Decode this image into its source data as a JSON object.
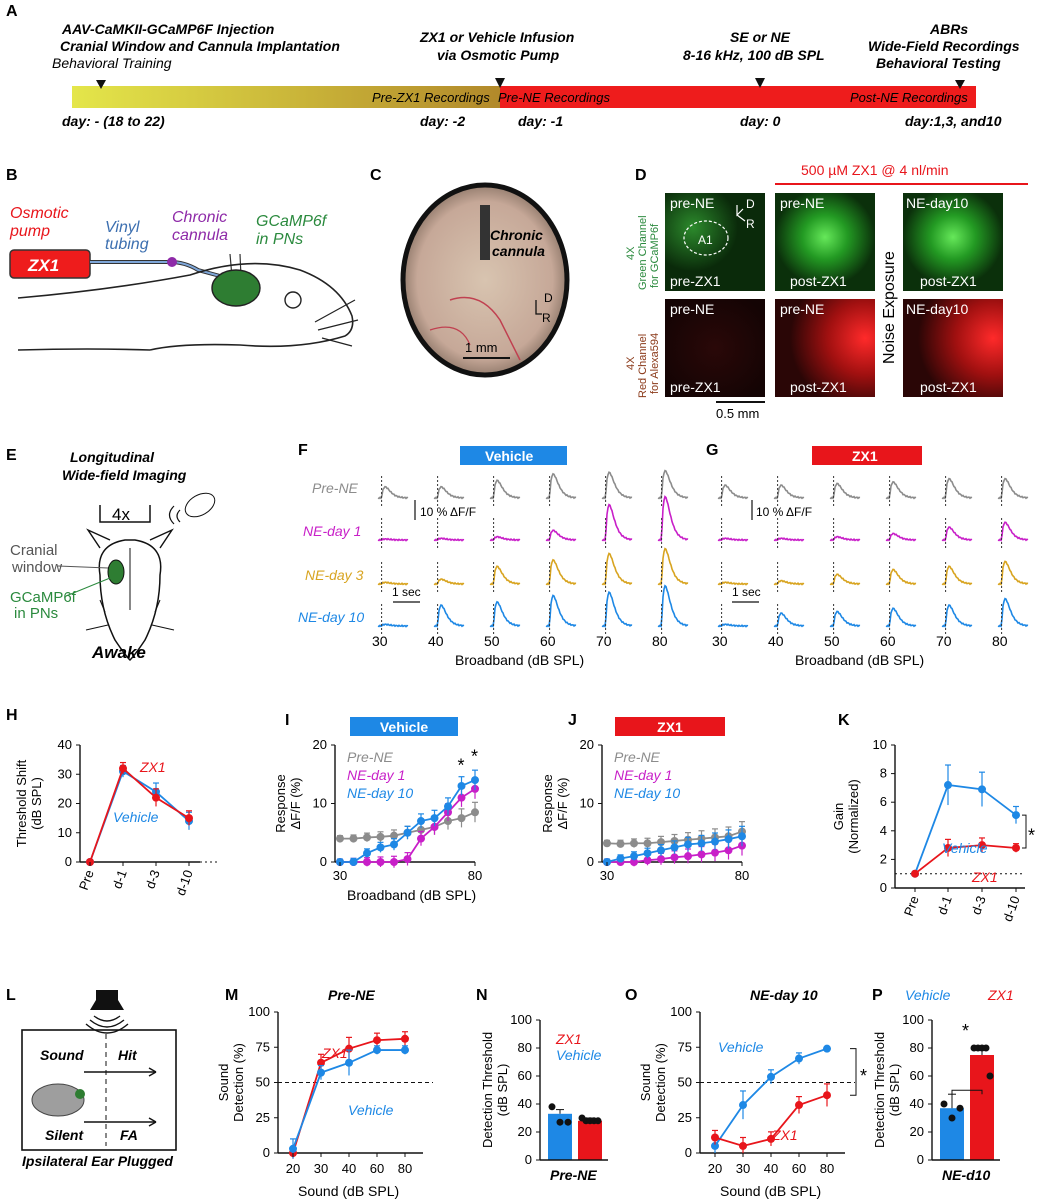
{
  "colors": {
    "vehicle": "#1e88e5",
    "zx1": "#e8151b",
    "pre": "#8c8c8c",
    "day1": "#c81fc8",
    "day3": "#d8a420",
    "day10": "#1e88e5",
    "green": "#2b8a3e",
    "red": "#e8151b",
    "purple": "#8e2aa8",
    "blue_text": "#3c6fb0"
  },
  "A": {
    "label": "A",
    "events": [
      {
        "lines": [
          "AAV-CaMKII-GCaMP6F Injection",
          "Cranial Window and Cannula Implantation"
        ],
        "sub": "Behavioral Training"
      },
      {
        "lines": [
          "ZX1 or Vehicle Infusion",
          "via Osmotic Pump"
        ]
      },
      {
        "lines": [
          "SE or NE",
          "8-16 kHz, 100 dB SPL"
        ]
      },
      {
        "lines": [
          "ABRs",
          "Wide-Field Recordings"
        ],
        "sub": "Behavioral Testing"
      }
    ],
    "bar_labels": [
      "Pre-ZX1 Recordings",
      "Pre-NE Recordings",
      "Post-NE Recordings"
    ],
    "days": [
      "day: - (18 to 22)",
      "day: -2",
      "day: -1",
      "day: 0",
      "day:1,3, and10"
    ]
  },
  "B": {
    "label": "B",
    "zx1": "ZX1",
    "osmotic": [
      "Osmotic",
      "pump"
    ],
    "vinyl": [
      "Vinyl",
      "tubing"
    ],
    "cannula": [
      "Chronic",
      "cannula"
    ],
    "gcamp": [
      "GCaMP6f",
      "in PNs"
    ]
  },
  "C": {
    "label": "C",
    "cannula": [
      "Chronic",
      "cannula"
    ],
    "scale": "1 mm",
    "dir_d": "D",
    "dir_r": "R"
  },
  "D": {
    "label": "D",
    "header": "500 µM ZX1 @ 4 nl/min",
    "green_label": [
      "4X",
      "Green Channel",
      "for GCaMP6f"
    ],
    "red_label": [
      "4X",
      "Red Channel",
      "for Alexa594"
    ],
    "noise": "Noise Exposure",
    "scale": "0.5 mm",
    "a1": "A1",
    "dir_d": "D",
    "dir_r": "R",
    "top": [
      "pre-NE",
      "pre-NE",
      "NE-day10"
    ],
    "bottom": [
      "pre-ZX1",
      "post-ZX1",
      "post-ZX1"
    ]
  },
  "E": {
    "label": "E",
    "title": [
      "Longitudinal",
      "Wide-field Imaging"
    ],
    "mag": "4x",
    "window": [
      "Cranial",
      "window"
    ],
    "gcamp": [
      "GCaMP6f",
      "in PNs"
    ],
    "awake": "Awake"
  },
  "FG": {
    "F_label": "F",
    "G_label": "G",
    "F_title": "Vehicle",
    "G_title": "ZX1",
    "rows": [
      "Pre-NE",
      "NE-day 1",
      "NE-day 3",
      "NE-day 10"
    ],
    "levels": [
      "30",
      "40",
      "50",
      "60",
      "70",
      "80"
    ],
    "xlabel": "Broadband (dB SPL)",
    "scale_y": "10 % ΔF/F",
    "scale_x": "1 sec",
    "F_amp": [
      [
        0.35,
        0.35,
        0.55,
        0.75,
        0.8,
        0.85
      ],
      [
        0.03,
        0.05,
        0.1,
        0.3,
        1.1,
        1.35
      ],
      [
        0.05,
        0.15,
        0.55,
        0.75,
        0.95,
        1.1
      ],
      [
        0.05,
        0.65,
        0.75,
        0.95,
        1.05,
        1.25
      ]
    ],
    "G_amp": [
      [
        0.4,
        0.4,
        0.45,
        0.5,
        0.6,
        0.6
      ],
      [
        0.05,
        0.05,
        0.1,
        0.2,
        0.4,
        0.55
      ],
      [
        0.05,
        0.1,
        0.3,
        0.45,
        0.55,
        0.7
      ],
      [
        0.05,
        0.4,
        0.45,
        0.55,
        0.65,
        0.85
      ]
    ]
  },
  "chart_data": [
    {
      "panel": "H",
      "type": "line",
      "categories": [
        "Pre",
        "d-1",
        "d-3",
        "d-10"
      ],
      "ylabel": [
        "Threshold Shift",
        "(dB SPL)"
      ],
      "yticks": [
        "0",
        "10",
        "20",
        "30",
        "40"
      ],
      "ylim": [
        0,
        40
      ],
      "series": [
        {
          "name": "ZX1",
          "values": [
            0,
            32,
            22,
            15
          ],
          "err": [
            0,
            2,
            3,
            2.5
          ]
        },
        {
          "name": "Vehicle",
          "values": [
            0,
            31,
            24,
            14
          ],
          "err": [
            0,
            2,
            3,
            3
          ]
        }
      ]
    },
    {
      "panel": "I",
      "type": "line",
      "title": "Vehicle",
      "xlabel": "Broadband (dB SPL)",
      "ylabel": [
        "Response",
        "ΔF/F (%)"
      ],
      "yticks": [
        "0",
        "10",
        "20"
      ],
      "xticks": [
        "30",
        "80"
      ],
      "ylim": [
        0,
        20
      ],
      "star": "*",
      "x": [
        30,
        35,
        40,
        45,
        50,
        55,
        60,
        65,
        70,
        75,
        80
      ],
      "series": [
        {
          "name": "Pre-NE",
          "values": [
            4,
            4,
            4.2,
            4.3,
            4.5,
            5,
            5.5,
            6,
            7,
            7.5,
            8.5
          ]
        },
        {
          "name": "NE-day 1",
          "values": [
            0,
            0,
            0,
            0,
            0,
            0.5,
            4,
            6,
            8.5,
            11,
            12.5
          ]
        },
        {
          "name": "NE-day 10",
          "values": [
            0,
            0,
            1.5,
            2.5,
            3,
            5,
            7,
            7.5,
            9.5,
            13,
            14
          ]
        }
      ]
    },
    {
      "panel": "J",
      "type": "line",
      "title": "ZX1",
      "yticks": [
        "0",
        "10",
        "20"
      ],
      "xticks": [
        "30",
        "80"
      ],
      "ylim": [
        0,
        20
      ],
      "ylabel": [
        "Response",
        "ΔF/F (%)"
      ],
      "x": [
        30,
        35,
        40,
        45,
        50,
        55,
        60,
        65,
        70,
        75,
        80
      ],
      "series": [
        {
          "name": "Pre-NE",
          "values": [
            3.2,
            3.1,
            3.2,
            3.2,
            3.4,
            3.6,
            3.8,
            4.0,
            4.2,
            4.4,
            5.2
          ]
        },
        {
          "name": "NE-day 1",
          "values": [
            0,
            0,
            0,
            0.3,
            0.5,
            0.8,
            1,
            1.3,
            1.6,
            2,
            2.8
          ]
        },
        {
          "name": "NE-day 10",
          "values": [
            0,
            0.6,
            1,
            1.5,
            2,
            2.5,
            3,
            3.2,
            3.5,
            3.9,
            4.4
          ]
        }
      ]
    },
    {
      "panel": "K",
      "type": "line",
      "categories": [
        "Pre",
        "d-1",
        "d-3",
        "d-10"
      ],
      "ylabel": [
        "Gain",
        "(Normalized)"
      ],
      "yticks": [
        "0",
        "2",
        "4",
        "6",
        "8",
        "10"
      ],
      "ylim": [
        0,
        10
      ],
      "star": "*",
      "series": [
        {
          "name": "Vehicle",
          "values": [
            1,
            7.2,
            6.9,
            5.1
          ],
          "err": [
            0,
            1.4,
            1.2,
            0.6
          ]
        },
        {
          "name": "ZX1",
          "values": [
            1,
            2.8,
            3,
            2.8
          ],
          "err": [
            0,
            0.6,
            0.5,
            0.3
          ]
        }
      ]
    },
    {
      "panel": "M",
      "type": "line",
      "title": "Pre-NE",
      "xlabel": "Sound (dB SPL)",
      "ylabel": [
        "Sound",
        "Detection (%)"
      ],
      "yticks": [
        "0",
        "25",
        "50",
        "75",
        "100"
      ],
      "xticks": [
        "20",
        "30",
        "40",
        "60",
        "80"
      ],
      "ylim": [
        0,
        100
      ],
      "series": [
        {
          "name": "ZX1",
          "values": [
            0,
            64,
            74,
            80,
            81
          ],
          "err": [
            4,
            6,
            8,
            5,
            5
          ]
        },
        {
          "name": "Vehicle",
          "values": [
            3,
            57,
            64,
            73,
            73
          ],
          "err": [
            7,
            5,
            9,
            3,
            3
          ]
        }
      ]
    },
    {
      "panel": "N",
      "type": "bar",
      "xlabel": "Pre-NE",
      "ylabel": [
        "Detection Threshold",
        "(dB SPL)"
      ],
      "yticks": [
        "0",
        "20",
        "40",
        "60",
        "80",
        "100"
      ],
      "ylim": [
        0,
        100
      ],
      "series": [
        {
          "name": "ZX1",
          "value": 28,
          "err": 2
        },
        {
          "name": "Vehicle",
          "value": 33,
          "err": 3
        }
      ],
      "points": {
        "Vehicle": [
          38,
          27,
          27
        ],
        "ZX1": [
          30,
          28,
          28,
          28,
          28
        ]
      }
    },
    {
      "panel": "O",
      "type": "line",
      "title": "NE-day 10",
      "xlabel": "Sound (dB SPL)",
      "ylabel": [
        "Sound",
        "Detection (%)"
      ],
      "yticks": [
        "0",
        "25",
        "50",
        "75",
        "100"
      ],
      "xticks": [
        "20",
        "30",
        "40",
        "60",
        "80"
      ],
      "ylim": [
        0,
        100
      ],
      "star": "*",
      "series": [
        {
          "name": "Vehicle",
          "values": [
            5,
            34,
            54,
            67,
            74
          ],
          "err": [
            5,
            10,
            5,
            4,
            1
          ]
        },
        {
          "name": "ZX1",
          "values": [
            11,
            5,
            10,
            34,
            41
          ],
          "err": [
            5,
            6,
            5,
            6,
            8
          ]
        }
      ]
    },
    {
      "panel": "P",
      "type": "bar",
      "xlabel": "NE-d10",
      "ylabel": [
        "Detection Threshold",
        "(dB SPL)"
      ],
      "yticks": [
        "0",
        "20",
        "40",
        "60",
        "80",
        "100"
      ],
      "ylim": [
        0,
        100
      ],
      "star": "*",
      "series": [
        {
          "name": "Vehicle",
          "value": 37,
          "err": 10
        },
        {
          "name": "ZX1",
          "value": 75,
          "err": 5
        }
      ],
      "points": {
        "Vehicle": [
          40,
          30,
          37
        ],
        "ZX1": [
          80,
          80,
          80,
          80,
          60
        ]
      }
    }
  ],
  "L": {
    "label": "L",
    "sound": "Sound",
    "silent": "Silent",
    "hit": "Hit",
    "fa": "FA",
    "caption": "Ipsilateral Ear Plugged"
  },
  "labels": {
    "H": "H",
    "I": "I",
    "J": "J",
    "K": "K",
    "M": "M",
    "N": "N",
    "O": "O",
    "P": "P"
  }
}
